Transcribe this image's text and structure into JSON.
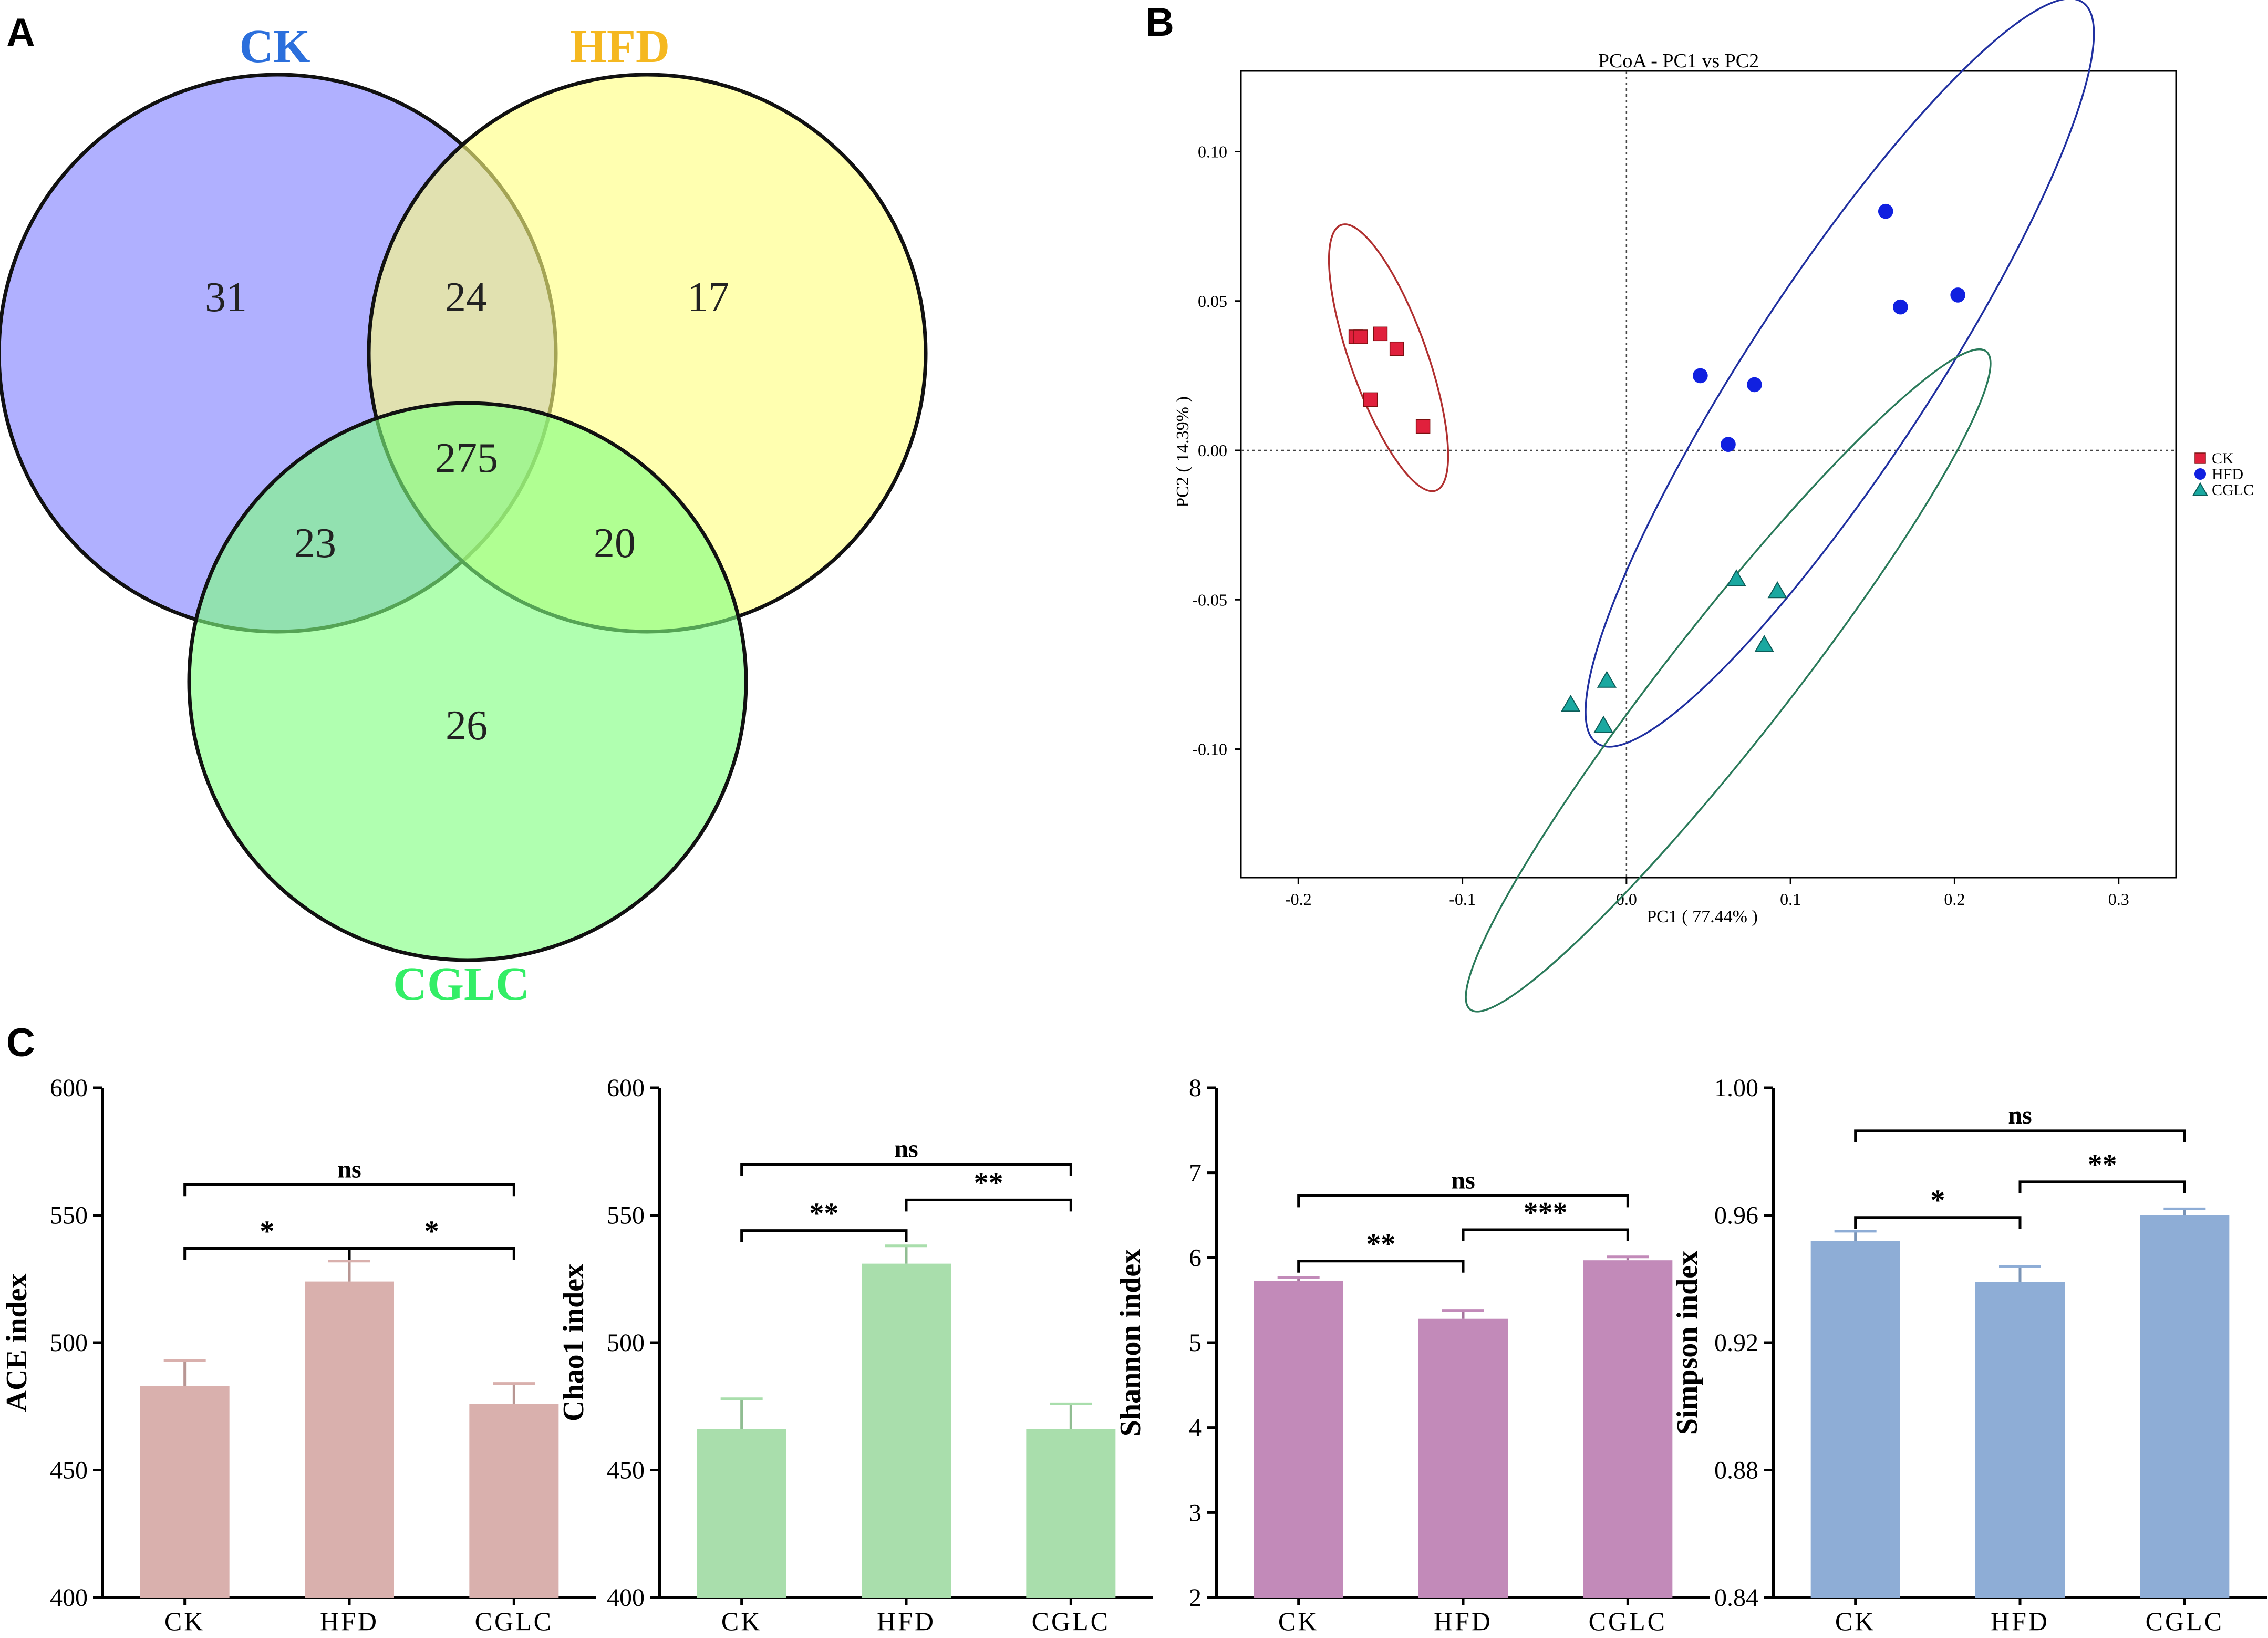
{
  "panels": {
    "a": "A",
    "b": "B",
    "c": "C"
  },
  "colors": {
    "ck_fill": "#8080ff",
    "hfd_fill": "#ffff80",
    "cglc_fill": "#80ff80",
    "ck_title": "#2b6fdc",
    "hfd_title": "#f5b820",
    "cglc_title": "#33ee66",
    "pcoa_ck": "#e0203c",
    "pcoa_hfd": "#1020e0",
    "pcoa_cglc": "#1aa8a0",
    "ellipse_ck": "#b03030",
    "ellipse_hfd": "#2030a0",
    "ellipse_cglc": "#2a7a5a",
    "bar_ace": "#d9b0ad",
    "bar_chao": "#a9deac",
    "bar_shannon": "#c28ab9",
    "bar_simpson": "#8eadd6"
  },
  "chart_data": [
    {
      "type": "venn",
      "panel": "A",
      "sets": [
        "CK",
        "HFD",
        "CGLC"
      ],
      "regions": {
        "CK_only": "31",
        "CK_HFD": "24",
        "HFD_only": "17",
        "all": "275",
        "CK_CGLC": "23",
        "HFD_CGLC": "20",
        "CGLC_only": "26"
      }
    },
    {
      "type": "scatter",
      "panel": "B",
      "title": "PCoA - PC1 vs PC2",
      "xlabel": "PC1 ( 77.44% )",
      "ylabel": "PC2 ( 14.39% )",
      "xlim": [
        -0.235,
        0.335
      ],
      "ylim": [
        -0.143,
        0.127
      ],
      "xticks": [
        -0.2,
        -0.1,
        0.0,
        0.1,
        0.2,
        0.3
      ],
      "xtick_labels": [
        "-0.2",
        "-0.1",
        "0.0",
        "0.1",
        "0.2",
        "0.3"
      ],
      "yticks": [
        0.1,
        0.05,
        0.0,
        -0.05,
        -0.1
      ],
      "ytick_labels": [
        "0.10",
        "0.05",
        "0.00",
        "-0.05",
        "-0.10"
      ],
      "legend": [
        "CK",
        "HFD",
        "CGLC"
      ],
      "legend_position": "right",
      "series": [
        {
          "name": "CK",
          "marker": "square",
          "points": [
            [
              -0.165,
              0.038
            ],
            [
              -0.162,
              0.038
            ],
            [
              -0.15,
              0.039
            ],
            [
              -0.14,
              0.034
            ],
            [
              -0.156,
              0.017
            ],
            [
              -0.124,
              0.008
            ]
          ]
        },
        {
          "name": "HFD",
          "marker": "circle",
          "points": [
            [
              0.158,
              0.08
            ],
            [
              0.167,
              0.048
            ],
            [
              0.202,
              0.052
            ],
            [
              0.045,
              0.025
            ],
            [
              0.078,
              0.022
            ],
            [
              0.062,
              0.002
            ]
          ]
        },
        {
          "name": "CGLC",
          "marker": "triangle",
          "points": [
            [
              0.067,
              -0.043
            ],
            [
              0.092,
              -0.047
            ],
            [
              0.084,
              -0.065
            ],
            [
              -0.012,
              -0.077
            ],
            [
              -0.034,
              -0.085
            ],
            [
              -0.014,
              -0.092
            ]
          ]
        }
      ],
      "ellipses": [
        {
          "name": "CK",
          "cx": -0.145,
          "cy": 0.031,
          "rx": 0.053,
          "ry": 0.018,
          "angle_deg": -57
        },
        {
          "name": "HFD",
          "cx": 0.13,
          "cy": 0.026,
          "rx": 0.193,
          "ry": 0.036,
          "angle_deg": 40
        },
        {
          "name": "CGLC",
          "cx": 0.062,
          "cy": -0.077,
          "rx": 0.192,
          "ry": 0.023,
          "angle_deg": 35
        }
      ]
    },
    {
      "type": "bar",
      "panel": "C1",
      "categories": [
        "CK",
        "HFD",
        "CGLC"
      ],
      "values": [
        483,
        524,
        476
      ],
      "errors": [
        10,
        8,
        8
      ],
      "ylabel": "ACE index",
      "ylim": [
        400,
        600
      ],
      "yticks": [
        400,
        450,
        500,
        550,
        600
      ],
      "ytick_labels": [
        "400",
        "450",
        "500",
        "550",
        "600"
      ],
      "color_key": "bar_ace",
      "brackets": [
        {
          "from": 0,
          "to": 2,
          "label": "ns",
          "y": 562
        },
        {
          "from": 1,
          "to": 2,
          "label": "*",
          "y": 537
        },
        {
          "from": 0,
          "to": 1,
          "label": "*",
          "y": 537
        }
      ]
    },
    {
      "type": "bar",
      "panel": "C2",
      "categories": [
        "CK",
        "HFD",
        "CGLC"
      ],
      "values": [
        466,
        531,
        466
      ],
      "errors": [
        12,
        7,
        10
      ],
      "ylabel": "Chao1 index",
      "ylim": [
        400,
        600
      ],
      "yticks": [
        400,
        450,
        500,
        550,
        600
      ],
      "ytick_labels": [
        "400",
        "450",
        "500",
        "550",
        "600"
      ],
      "color_key": "bar_chao",
      "brackets": [
        {
          "from": 0,
          "to": 2,
          "label": "ns",
          "y": 570
        },
        {
          "from": 1,
          "to": 2,
          "label": "**",
          "y": 556
        },
        {
          "from": 0,
          "to": 1,
          "label": "**",
          "y": 544
        }
      ]
    },
    {
      "type": "bar",
      "panel": "C3",
      "categories": [
        "CK",
        "HFD",
        "CGLC"
      ],
      "values": [
        5.73,
        5.28,
        5.97
      ],
      "errors": [
        0.04,
        0.1,
        0.04
      ],
      "ylabel": "Shannon index",
      "ylim": [
        2,
        8
      ],
      "yticks": [
        2,
        3,
        4,
        5,
        6,
        7,
        8
      ],
      "ytick_labels": [
        "2",
        "3",
        "4",
        "5",
        "6",
        "7",
        "8"
      ],
      "color_key": "bar_shannon",
      "brackets": [
        {
          "from": 0,
          "to": 2,
          "label": "ns",
          "y": 6.73
        },
        {
          "from": 1,
          "to": 2,
          "label": "***",
          "y": 6.33
        },
        {
          "from": 0,
          "to": 1,
          "label": "**",
          "y": 5.96
        }
      ]
    },
    {
      "type": "bar",
      "panel": "C4",
      "categories": [
        "CK",
        "HFD",
        "CGLC"
      ],
      "values": [
        0.952,
        0.939,
        0.96
      ],
      "errors": [
        0.003,
        0.005,
        0.002
      ],
      "ylabel": "Simpson index",
      "ylim": [
        0.84,
        1.0
      ],
      "yticks": [
        0.84,
        0.88,
        0.92,
        0.96,
        1.0
      ],
      "ytick_labels": [
        "0.84",
        "0.88",
        "0.92",
        "0.96",
        "1.00"
      ],
      "color_key": "bar_simpson",
      "brackets": [
        {
          "from": 0,
          "to": 2,
          "label": "ns",
          "y": 0.9865
        },
        {
          "from": 1,
          "to": 2,
          "label": "**",
          "y": 0.9705
        },
        {
          "from": 0,
          "to": 1,
          "label": "*",
          "y": 0.9593
        }
      ]
    }
  ]
}
